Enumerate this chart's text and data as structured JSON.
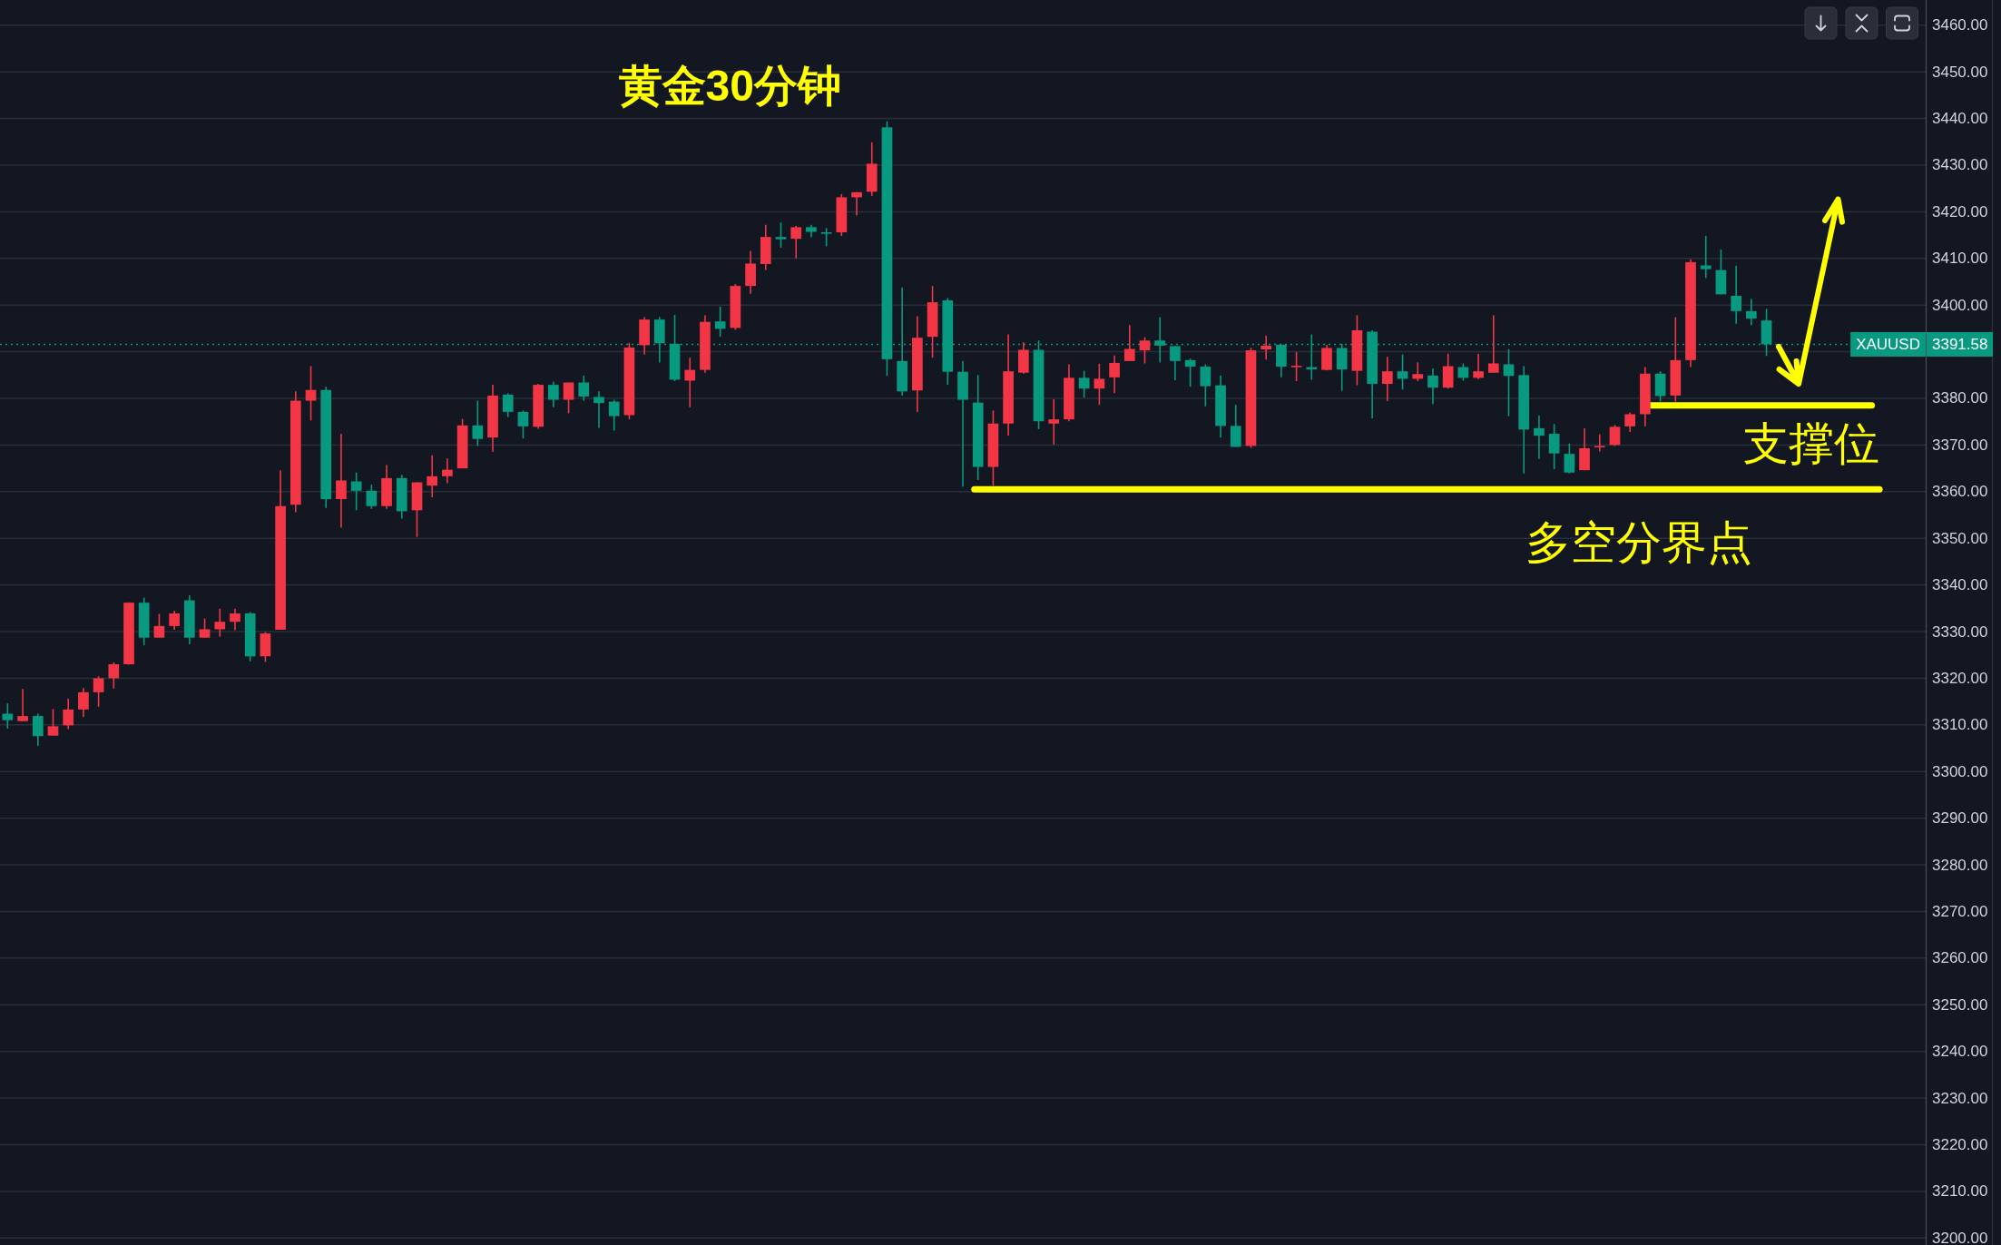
{
  "chart_data": {
    "type": "candlestick",
    "title": "黄金30分钟",
    "categories": [
      null,
      null,
      null,
      null,
      null,
      null,
      null,
      null,
      null,
      null,
      null,
      null,
      null,
      null,
      null,
      null,
      null,
      null,
      null,
      null,
      null,
      null,
      null,
      null,
      null,
      null,
      null,
      null,
      null,
      null,
      null,
      null,
      null,
      null,
      null,
      null,
      null,
      null,
      null,
      null,
      null,
      null,
      null,
      null,
      null,
      null,
      null,
      null,
      null,
      null,
      null,
      null,
      null,
      null,
      null,
      null,
      null,
      null,
      null,
      null,
      null,
      null,
      null,
      null,
      null,
      null,
      null,
      null,
      null,
      null,
      null,
      null,
      null,
      null,
      null,
      null,
      null,
      null,
      null,
      null,
      null,
      null,
      null,
      null,
      null,
      null,
      null,
      null,
      null,
      null,
      null,
      null,
      null,
      null,
      null,
      null,
      null,
      null,
      null,
      null,
      null,
      null,
      null,
      null,
      null,
      null,
      null,
      null,
      null,
      null,
      null,
      null,
      null,
      null,
      null,
      null,
      null,
      null,
      null,
      null,
      null,
      null,
      null,
      null,
      null,
      null,
      null
    ],
    "ohlc": [
      [
        3312.4,
        3314.6,
        3309.2,
        3311.0
      ],
      [
        3310.8,
        3317.7,
        3310.8,
        3311.9
      ],
      [
        3311.9,
        3312.4,
        3305.5,
        3307.6
      ],
      [
        3307.7,
        3313.4,
        3307.7,
        3309.7
      ],
      [
        3309.9,
        3315.6,
        3309.1,
        3313.3
      ],
      [
        3313.3,
        3317.9,
        3311.7,
        3317.0
      ],
      [
        3317.0,
        3320.4,
        3313.9,
        3320.0
      ],
      [
        3320.0,
        3323.4,
        3317.8,
        3323.0
      ],
      [
        3323.0,
        3336.3,
        3322.9,
        3336.2
      ],
      [
        3336.2,
        3337.3,
        3327.1,
        3328.7
      ],
      [
        3328.7,
        3333.8,
        3328.7,
        3331.2
      ],
      [
        3331.2,
        3334.5,
        3330.4,
        3333.9
      ],
      [
        3336.7,
        3337.8,
        3327.3,
        3328.7
      ],
      [
        3328.7,
        3332.8,
        3328.7,
        3330.5
      ],
      [
        3330.5,
        3334.9,
        3328.9,
        3332.1
      ],
      [
        3332.1,
        3334.9,
        3330.3,
        3333.9
      ],
      [
        3333.9,
        3334.2,
        3323.6,
        3324.7
      ],
      [
        3324.7,
        3329.9,
        3323.5,
        3329.6
      ],
      [
        3330.4,
        3364.6,
        3330.4,
        3356.9
      ],
      [
        3357.2,
        3381.5,
        3355.6,
        3379.5
      ],
      [
        3379.5,
        3386.9,
        3375.3,
        3381.8
      ],
      [
        3381.8,
        3382.5,
        3356.5,
        3358.4
      ],
      [
        3358.4,
        3372.4,
        3352.3,
        3362.4
      ],
      [
        3362.2,
        3364.1,
        3356.0,
        3360.2
      ],
      [
        3360.2,
        3361.5,
        3356.3,
        3356.9
      ],
      [
        3356.9,
        3365.7,
        3356.3,
        3362.9
      ],
      [
        3362.9,
        3363.6,
        3354.2,
        3355.8
      ],
      [
        3356.0,
        3362.0,
        3350.3,
        3362.0
      ],
      [
        3361.3,
        3367.8,
        3358.8,
        3363.3
      ],
      [
        3363.3,
        3367.1,
        3361.8,
        3364.7
      ],
      [
        3365.0,
        3375.6,
        3365.0,
        3374.2
      ],
      [
        3374.2,
        3379.5,
        3369.8,
        3371.3
      ],
      [
        3371.6,
        3382.9,
        3368.5,
        3380.6
      ],
      [
        3380.8,
        3381.1,
        3376.0,
        3377.1
      ],
      [
        3377.1,
        3377.4,
        3371.4,
        3374.0
      ],
      [
        3373.9,
        3383.1,
        3373.5,
        3382.9
      ],
      [
        3382.9,
        3383.6,
        3378.1,
        3379.7
      ],
      [
        3379.7,
        3383.4,
        3376.8,
        3383.4
      ],
      [
        3383.4,
        3384.9,
        3379.5,
        3380.4
      ],
      [
        3380.3,
        3381.5,
        3373.7,
        3379.0
      ],
      [
        3379.3,
        3379.7,
        3373.1,
        3376.2
      ],
      [
        3376.4,
        3391.9,
        3375.5,
        3390.9
      ],
      [
        3391.4,
        3397.4,
        3389.4,
        3396.9
      ],
      [
        3396.9,
        3397.4,
        3387.7,
        3391.8
      ],
      [
        3391.7,
        3397.9,
        3383.7,
        3384.0
      ],
      [
        3383.8,
        3388.7,
        3378.1,
        3386.1
      ],
      [
        3386.1,
        3397.8,
        3385.5,
        3396.4
      ],
      [
        3396.5,
        3399.7,
        3393.2,
        3394.9
      ],
      [
        3395.1,
        3404.5,
        3394.7,
        3404.1
      ],
      [
        3404.1,
        3411.6,
        3402.4,
        3408.9
      ],
      [
        3408.8,
        3417.2,
        3407.5,
        3414.6
      ],
      [
        3414.6,
        3417.7,
        3412.3,
        3414.1
      ],
      [
        3414.2,
        3417.0,
        3410.0,
        3416.7
      ],
      [
        3416.7,
        3417.2,
        3414.6,
        3415.7
      ],
      [
        3415.6,
        3416.5,
        3412.6,
        3415.5
      ],
      [
        3415.6,
        3423.8,
        3414.8,
        3423.1
      ],
      [
        3423.1,
        3424.2,
        3419.2,
        3424.2
      ],
      [
        3424.3,
        3434.9,
        3423.4,
        3430.3
      ],
      [
        3438.1,
        3439.4,
        3384.8,
        3388.4
      ],
      [
        3388.0,
        3403.8,
        3380.6,
        3381.5
      ],
      [
        3381.7,
        3397.6,
        3377.1,
        3393.0
      ],
      [
        3393.2,
        3404.1,
        3388.7,
        3400.6
      ],
      [
        3401.0,
        3401.5,
        3382.9,
        3385.7
      ],
      [
        3385.7,
        3388.0,
        3361.1,
        3379.7
      ],
      [
        3379.1,
        3385.0,
        3362.5,
        3365.3
      ],
      [
        3365.3,
        3377.4,
        3361.3,
        3374.6
      ],
      [
        3374.6,
        3393.7,
        3372.0,
        3385.8
      ],
      [
        3385.5,
        3392.0,
        3385.3,
        3390.4
      ],
      [
        3390.4,
        3392.4,
        3373.4,
        3375.1
      ],
      [
        3374.6,
        3379.8,
        3370.1,
        3375.5
      ],
      [
        3375.5,
        3387.3,
        3375.1,
        3384.4
      ],
      [
        3384.4,
        3385.9,
        3380.2,
        3382.1
      ],
      [
        3382.1,
        3387.4,
        3378.6,
        3384.2
      ],
      [
        3384.5,
        3389.2,
        3381.1,
        3387.6
      ],
      [
        3388.0,
        3395.7,
        3388.0,
        3390.6
      ],
      [
        3390.3,
        3393.1,
        3387.5,
        3392.4
      ],
      [
        3392.4,
        3397.4,
        3387.7,
        3391.3
      ],
      [
        3391.2,
        3391.2,
        3383.9,
        3388.0
      ],
      [
        3388.2,
        3388.5,
        3382.5,
        3386.8
      ],
      [
        3386.8,
        3387.3,
        3378.3,
        3382.6
      ],
      [
        3382.8,
        3384.9,
        3371.6,
        3374.1
      ],
      [
        3374.1,
        3378.6,
        3369.6,
        3369.6
      ],
      [
        3369.8,
        3390.8,
        3369.4,
        3390.3
      ],
      [
        3390.5,
        3393.4,
        3388.3,
        3391.3
      ],
      [
        3391.5,
        3391.5,
        3384.5,
        3386.8
      ],
      [
        3386.8,
        3389.9,
        3383.7,
        3387.0
      ],
      [
        3386.7,
        3393.7,
        3384.0,
        3386.2
      ],
      [
        3386.1,
        3391.5,
        3386.0,
        3390.8
      ],
      [
        3390.8,
        3391.7,
        3381.6,
        3386.2
      ],
      [
        3385.9,
        3397.8,
        3382.8,
        3394.6
      ],
      [
        3394.3,
        3394.6,
        3375.7,
        3383.1
      ],
      [
        3383.1,
        3388.9,
        3379.4,
        3385.8
      ],
      [
        3385.8,
        3389.4,
        3381.9,
        3384.2
      ],
      [
        3384.2,
        3387.7,
        3383.7,
        3385.2
      ],
      [
        3384.9,
        3386.4,
        3378.8,
        3382.3
      ],
      [
        3382.3,
        3389.6,
        3382.1,
        3386.9
      ],
      [
        3386.7,
        3387.5,
        3383.8,
        3384.4
      ],
      [
        3384.4,
        3389.6,
        3384.1,
        3385.8
      ],
      [
        3385.5,
        3397.8,
        3385.5,
        3387.5
      ],
      [
        3387.3,
        3390.5,
        3376.2,
        3384.8
      ],
      [
        3385.0,
        3386.9,
        3363.9,
        3373.3
      ],
      [
        3373.6,
        3376.3,
        3367.0,
        3372.0
      ],
      [
        3372.4,
        3374.5,
        3364.8,
        3368.2
      ],
      [
        3368.1,
        3370.3,
        3363.9,
        3364.1
      ],
      [
        3364.6,
        3373.6,
        3364.6,
        3369.3
      ],
      [
        3369.5,
        3372.3,
        3368.6,
        3369.8
      ],
      [
        3370.0,
        3374.3,
        3369.8,
        3373.9
      ],
      [
        3374.0,
        3377.0,
        3372.8,
        3376.6
      ],
      [
        3376.6,
        3386.7,
        3374.0,
        3385.3
      ],
      [
        3385.3,
        3385.8,
        3379.3,
        3380.5
      ],
      [
        3380.6,
        3397.4,
        3379.3,
        3388.2
      ],
      [
        3388.2,
        3409.8,
        3386.7,
        3409.2
      ],
      [
        3408.5,
        3414.8,
        3405.8,
        3407.7
      ],
      [
        3407.5,
        3411.9,
        3402.3,
        3402.3
      ],
      [
        3402.0,
        3408.4,
        3396.0,
        3398.7
      ],
      [
        3398.7,
        3401.3,
        3395.7,
        3397.1
      ],
      [
        3396.7,
        3399.2,
        3389.1,
        3391.6
      ],
      null,
      null,
      null,
      null,
      null,
      null,
      null,
      null,
      null,
      null
    ],
    "colors": [
      "#089981",
      "#f23645",
      "#089981",
      "#f23645",
      "#f23645",
      "#f23645",
      "#f23645",
      "#f23645",
      "#f23645",
      "#089981",
      "#f23645",
      "#f23645",
      "#089981",
      "#f23645",
      "#f23645",
      "#f23645",
      "#089981",
      "#f23645",
      "#f23645",
      "#f23645",
      "#f23645",
      "#089981",
      "#f23645",
      "#089981",
      "#089981",
      "#f23645",
      "#089981",
      "#f23645",
      "#f23645",
      "#f23645",
      "#f23645",
      "#089981",
      "#f23645",
      "#089981",
      "#089981",
      "#f23645",
      "#089981",
      "#f23645",
      "#089981",
      "#089981",
      "#089981",
      "#f23645",
      "#f23645",
      "#089981",
      "#089981",
      "#f23645",
      "#f23645",
      "#089981",
      "#f23645",
      "#f23645",
      "#f23645",
      "#089981",
      "#f23645",
      "#089981",
      "#089981",
      "#f23645",
      "#f23645",
      "#f23645",
      "#089981",
      "#089981",
      "#f23645",
      "#f23645",
      "#089981",
      "#089981",
      "#089981",
      "#f23645",
      "#f23645",
      "#f23645",
      "#089981",
      "#f23645",
      "#f23645",
      "#089981",
      "#f23645",
      "#f23645",
      "#f23645",
      "#f23645",
      "#089981",
      "#089981",
      "#089981",
      "#089981",
      "#089981",
      "#089981",
      "#f23645",
      "#f23645",
      "#089981",
      "#f23645",
      "#089981",
      "#f23645",
      "#089981",
      "#f23645",
      "#089981",
      "#f23645",
      "#089981",
      "#f23645",
      "#089981",
      "#f23645",
      "#089981",
      "#f23645",
      "#f23645",
      "#089981",
      "#089981",
      "#089981",
      "#089981",
      "#089981",
      "#f23645",
      "#f23645",
      "#f23645",
      "#f23645",
      "#f23645",
      "#089981",
      "#f23645",
      "#f23645",
      "#089981",
      "#089981",
      "#089981",
      "#089981",
      "#089981",
      null,
      null,
      null,
      null,
      null,
      null,
      null,
      null,
      null,
      null
    ],
    "ylim": [
      3198.5,
      3465.4
    ],
    "yticks": [
      {
        "value": 3200,
        "label": "3200.00"
      },
      {
        "value": 3210,
        "label": "3210.00"
      },
      {
        "value": 3220,
        "label": "3220.00"
      },
      {
        "value": 3230,
        "label": "3230.00"
      },
      {
        "value": 3240,
        "label": "3240.00"
      },
      {
        "value": 3250,
        "label": "3250.00"
      },
      {
        "value": 3260,
        "label": "3260.00"
      },
      {
        "value": 3270,
        "label": "3270.00"
      },
      {
        "value": 3280,
        "label": "3280.00"
      },
      {
        "value": 3290,
        "label": "3290.00"
      },
      {
        "value": 3300,
        "label": "3300.00"
      },
      {
        "value": 3310,
        "label": "3310.00"
      },
      {
        "value": 3320,
        "label": "3320.00"
      },
      {
        "value": 3330,
        "label": "3330.00"
      },
      {
        "value": 3340,
        "label": "3340.00"
      },
      {
        "value": 3350,
        "label": "3350.00"
      },
      {
        "value": 3360,
        "label": "3360.00"
      },
      {
        "value": 3370,
        "label": "3370.00"
      },
      {
        "value": 3380,
        "label": "3380.00"
      },
      {
        "value": 3390,
        "label": null
      },
      {
        "value": 3400,
        "label": "3400.00"
      },
      {
        "value": 3410,
        "label": "3410.00"
      },
      {
        "value": 3420,
        "label": "3420.00"
      },
      {
        "value": 3430,
        "label": "3430.00"
      },
      {
        "value": 3440,
        "label": "3440.00"
      },
      {
        "value": 3450,
        "label": "3450.00"
      },
      {
        "value": 3460,
        "label": "3460.00"
      }
    ],
    "grid": "y",
    "tick_labels": "y",
    "ref_lines": [
      {
        "axis": "y",
        "value": 3391.58,
        "label": "XAUUSD",
        "color": "#089981",
        "line_style": "dotted"
      },
      {
        "axis": "y",
        "value": 3378.5,
        "label": "支撑位",
        "color": "#ffff00"
      },
      {
        "axis": "y",
        "value": 3360.5,
        "label": "多空分界点",
        "color": "#ffff00"
      }
    ],
    "annotations": [
      "3391.58"
    ]
  }
}
